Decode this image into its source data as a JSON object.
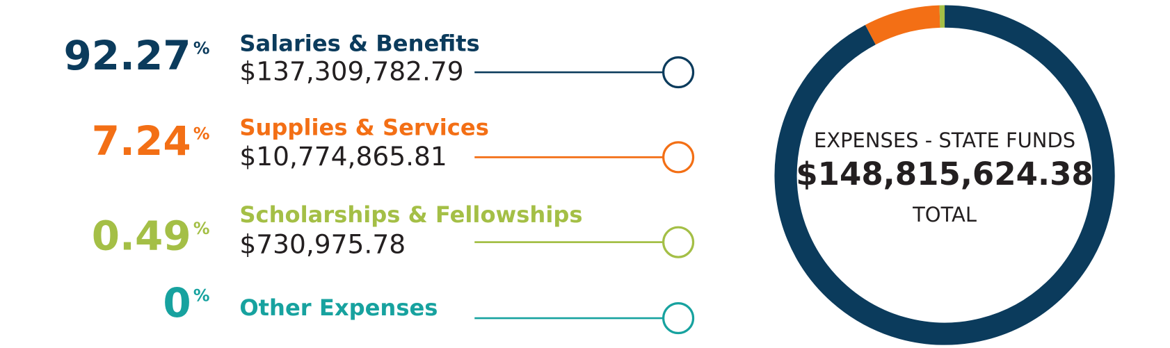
{
  "chart_data": {
    "type": "pie",
    "donut": true,
    "categories": [
      "Salaries & Benefits",
      "Supplies & Services",
      "Scholarships & Fellowships",
      "Other Expenses"
    ],
    "values": [
      92.27,
      7.24,
      0.49,
      0
    ],
    "unit": "%",
    "amounts": [
      "$137,309,782.79",
      "$10,774,865.81",
      "$730,975.78",
      null
    ],
    "colors": [
      "#0b3b5c",
      "#f36f15",
      "#a4bf46",
      "#17a29f"
    ],
    "center_title": "EXPENSES - STATE FUNDS",
    "total": "$148,815,624.38",
    "center_label": "TOTAL"
  }
}
